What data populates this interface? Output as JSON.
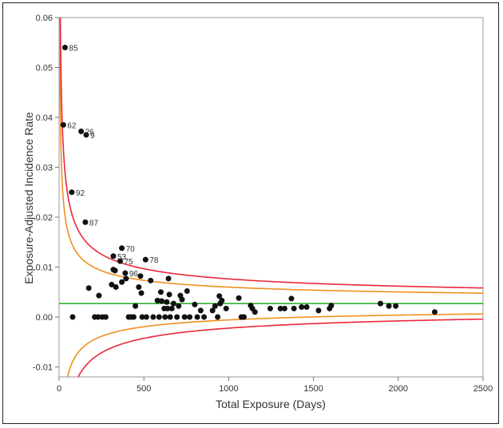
{
  "chart_data": {
    "type": "scatter",
    "title": "",
    "xlabel": "Total Exposure (Days)",
    "ylabel": "Exposure-Adjusted Incidence Rate",
    "xlim": [
      0,
      2500
    ],
    "ylim": [
      -0.012,
      0.06
    ],
    "xticks": [
      0,
      500,
      1000,
      1500,
      2000,
      2500
    ],
    "yticks": [
      -0.01,
      0.0,
      0.01,
      0.02,
      0.03,
      0.04,
      0.05,
      0.06
    ],
    "ytick_labels": [
      "-0.01",
      "0.00",
      "0.01",
      "0.02",
      "0.03",
      "0.04",
      "0.05",
      "0.06"
    ],
    "grid": false,
    "center_line": {
      "y": 0.0027,
      "color": "#22aa22"
    },
    "limit_curves": [
      {
        "name": "inner",
        "color": "#f0901e",
        "z": 2.0
      },
      {
        "name": "outer",
        "color": "#e8283c",
        "z": 3.0
      }
    ],
    "labeled_points": [
      {
        "x": 35,
        "y": 0.054,
        "label": "85"
      },
      {
        "x": 25,
        "y": 0.0385,
        "label": "62"
      },
      {
        "x": 130,
        "y": 0.0372,
        "label": "26"
      },
      {
        "x": 160,
        "y": 0.0365,
        "label": "9"
      },
      {
        "x": 75,
        "y": 0.025,
        "label": "92"
      },
      {
        "x": 155,
        "y": 0.019,
        "label": "87"
      },
      {
        "x": 370,
        "y": 0.0138,
        "label": "70"
      },
      {
        "x": 320,
        "y": 0.0122,
        "label": "53"
      },
      {
        "x": 360,
        "y": 0.0112,
        "label": "75"
      },
      {
        "x": 510,
        "y": 0.0115,
        "label": "78"
      },
      {
        "x": 390,
        "y": 0.0088,
        "label": "96"
      }
    ],
    "points": [
      {
        "x": 80,
        "y": 0.0
      },
      {
        "x": 175,
        "y": 0.0058
      },
      {
        "x": 210,
        "y": 0.0
      },
      {
        "x": 230,
        "y": 0.0
      },
      {
        "x": 255,
        "y": 0.0
      },
      {
        "x": 275,
        "y": 0.0
      },
      {
        "x": 235,
        "y": 0.0043
      },
      {
        "x": 310,
        "y": 0.0065
      },
      {
        "x": 335,
        "y": 0.006
      },
      {
        "x": 320,
        "y": 0.0095
      },
      {
        "x": 330,
        "y": 0.0093
      },
      {
        "x": 370,
        "y": 0.007
      },
      {
        "x": 395,
        "y": 0.0077
      },
      {
        "x": 410,
        "y": 0.0
      },
      {
        "x": 425,
        "y": 0.0
      },
      {
        "x": 440,
        "y": 0.0
      },
      {
        "x": 450,
        "y": 0.0022
      },
      {
        "x": 470,
        "y": 0.006
      },
      {
        "x": 485,
        "y": 0.0048
      },
      {
        "x": 490,
        "y": 0.0
      },
      {
        "x": 480,
        "y": 0.0082
      },
      {
        "x": 515,
        "y": 0.0
      },
      {
        "x": 540,
        "y": 0.0073
      },
      {
        "x": 555,
        "y": 0.0
      },
      {
        "x": 580,
        "y": 0.0033
      },
      {
        "x": 590,
        "y": 0.0
      },
      {
        "x": 600,
        "y": 0.005
      },
      {
        "x": 605,
        "y": 0.0032
      },
      {
        "x": 620,
        "y": 0.0017
      },
      {
        "x": 625,
        "y": 0.0
      },
      {
        "x": 635,
        "y": 0.003
      },
      {
        "x": 640,
        "y": 0.0017
      },
      {
        "x": 645,
        "y": 0.0077
      },
      {
        "x": 650,
        "y": 0.0045
      },
      {
        "x": 655,
        "y": 0.0
      },
      {
        "x": 665,
        "y": 0.0017
      },
      {
        "x": 675,
        "y": 0.0027
      },
      {
        "x": 695,
        "y": 0.0
      },
      {
        "x": 705,
        "y": 0.0022
      },
      {
        "x": 715,
        "y": 0.0043
      },
      {
        "x": 725,
        "y": 0.0035
      },
      {
        "x": 740,
        "y": 0.0
      },
      {
        "x": 755,
        "y": 0.0052
      },
      {
        "x": 770,
        "y": 0.0
      },
      {
        "x": 800,
        "y": 0.0025
      },
      {
        "x": 815,
        "y": 0.0
      },
      {
        "x": 835,
        "y": 0.0013
      },
      {
        "x": 855,
        "y": 0.0
      },
      {
        "x": 905,
        "y": 0.0013
      },
      {
        "x": 920,
        "y": 0.0022
      },
      {
        "x": 935,
        "y": 0.0
      },
      {
        "x": 950,
        "y": 0.0027
      },
      {
        "x": 945,
        "y": 0.0042
      },
      {
        "x": 960,
        "y": 0.0033
      },
      {
        "x": 985,
        "y": 0.0017
      },
      {
        "x": 1060,
        "y": 0.0038
      },
      {
        "x": 1075,
        "y": 0.0
      },
      {
        "x": 1090,
        "y": 0.0
      },
      {
        "x": 1130,
        "y": 0.0023
      },
      {
        "x": 1140,
        "y": 0.0017
      },
      {
        "x": 1155,
        "y": 0.001
      },
      {
        "x": 1245,
        "y": 0.0017
      },
      {
        "x": 1305,
        "y": 0.0017
      },
      {
        "x": 1330,
        "y": 0.0017
      },
      {
        "x": 1370,
        "y": 0.0037
      },
      {
        "x": 1385,
        "y": 0.0017
      },
      {
        "x": 1430,
        "y": 0.002
      },
      {
        "x": 1460,
        "y": 0.002
      },
      {
        "x": 1530,
        "y": 0.0013
      },
      {
        "x": 1595,
        "y": 0.0017
      },
      {
        "x": 1605,
        "y": 0.0023
      },
      {
        "x": 1895,
        "y": 0.0027
      },
      {
        "x": 1945,
        "y": 0.0022
      },
      {
        "x": 1985,
        "y": 0.0022
      },
      {
        "x": 2215,
        "y": 0.001
      }
    ]
  }
}
